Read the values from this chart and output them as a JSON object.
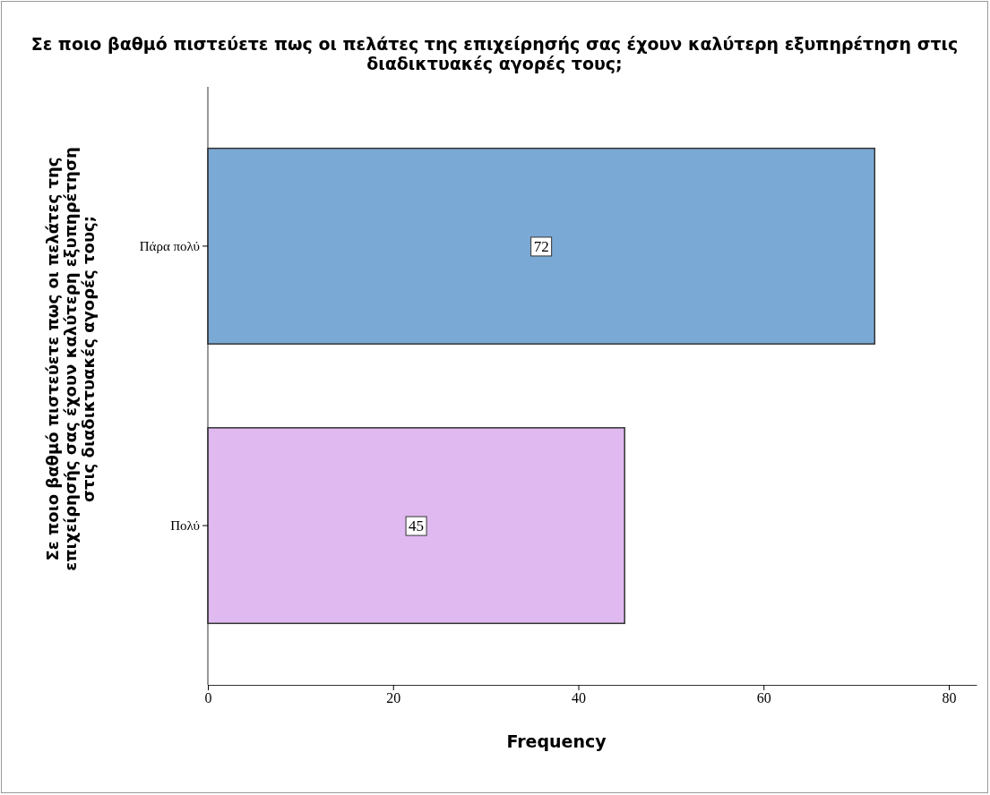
{
  "chart_data": {
    "type": "bar",
    "orientation": "horizontal",
    "title": "Σε ποιο βαθμό πιστεύετε πως οι πελάτες της επιχείρησής σας έχουν καλύτερη εξυπηρέτηση στις διαδικτυακές αγορές τους;",
    "xlabel": "Frequency",
    "ylabel": "Σε ποιο βαθμό πιστεύετε πως οι πελάτες της επιχείρησής σας έχουν καλύτερη εξυπηρέτηση στις διαδικτυακές αγορές τους;",
    "categories": [
      "Πάρα πολύ",
      "Πολύ"
    ],
    "values": [
      72,
      45
    ],
    "colors": [
      "#7ba9d5",
      "#dfb9f0"
    ],
    "xlim": [
      0,
      83
    ],
    "xticks": [
      0,
      20,
      40,
      60,
      80
    ],
    "data_labels": true,
    "grid": false
  }
}
